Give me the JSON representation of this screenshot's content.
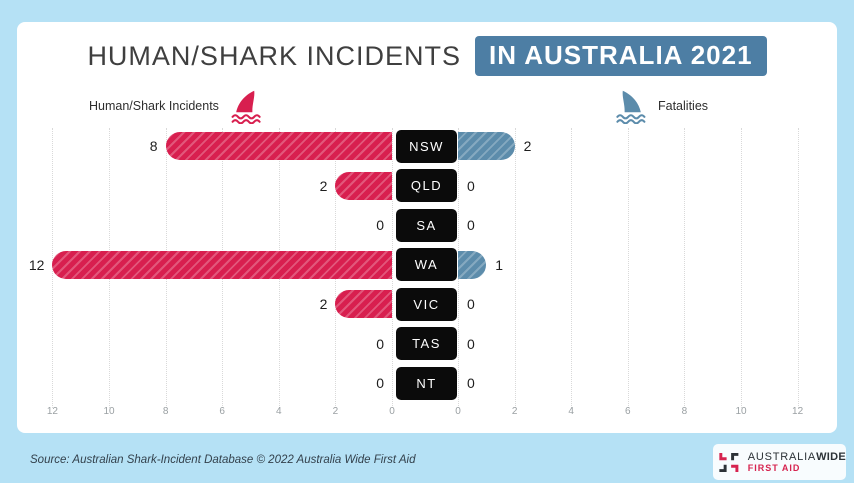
{
  "page": {
    "background_color": "#b5e1f5",
    "card_color": "#ffffff"
  },
  "header": {
    "title": "HUMAN/SHARK INCIDENTS",
    "badge": "IN AUSTRALIA 2021",
    "badge_color": "#4d7ea4"
  },
  "legend": {
    "left": {
      "label": "Human/Shark Incidents",
      "color": "#d81f4f",
      "icon": "red-shark-fin-icon"
    },
    "right": {
      "label": "Fatalities",
      "color": "#5c8cab",
      "icon": "blue-shark-fin-icon"
    }
  },
  "chart_data": {
    "type": "bar",
    "orientation": "horizontal-diverging",
    "title": "HUMAN/SHARK INCIDENTS IN AUSTRALIA 2021",
    "categories": [
      "NSW",
      "QLD",
      "SA",
      "WA",
      "VIC",
      "TAS",
      "NT"
    ],
    "series": [
      {
        "name": "Human/Shark Incidents",
        "side": "left",
        "color": "#d81f4f",
        "values": [
          8,
          2,
          0,
          12,
          2,
          0,
          0
        ]
      },
      {
        "name": "Fatalities",
        "side": "right",
        "color": "#5c8cab",
        "values": [
          2,
          0,
          0,
          1,
          0,
          0,
          0
        ]
      }
    ],
    "axis": {
      "left_ticks": [
        12,
        10,
        8,
        6,
        4,
        2,
        0
      ],
      "right_ticks": [
        0,
        2,
        4,
        6,
        8,
        10,
        12
      ],
      "max": 12,
      "grid": "dotted-vertical"
    },
    "legend_position": "top"
  },
  "footer": {
    "source": "Source: Australian Shark-Incident Database © 2022 Australia Wide First Aid",
    "logo": {
      "line1_regular": "AUSTRALIA",
      "line1_bold": "WIDE",
      "line2": "FIRST AID"
    }
  }
}
